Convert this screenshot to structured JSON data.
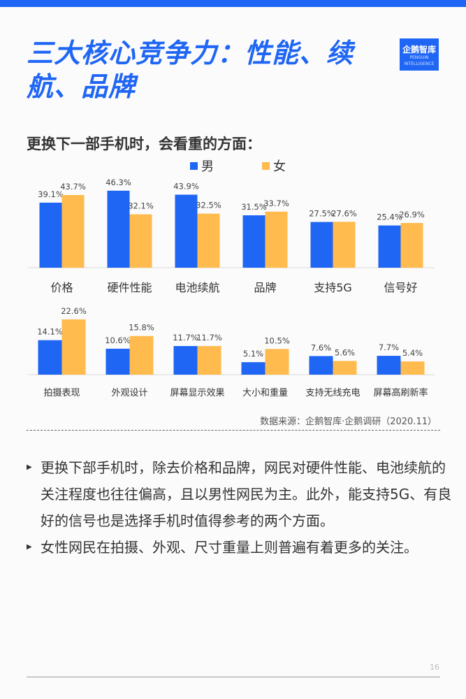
{
  "page": {
    "title": "三大核心竞争力：性能、续航、品牌",
    "logo_text": "企鹅智库",
    "logo_sub": "PENGUIN INTELLIGENCE",
    "chart_title": "更换下一部手机时，会看重的方面：",
    "source": "数据来源：企鹅智库·企鹅调研（2020.11）",
    "bullets": [
      "更换下部手机时，除去价格和品牌，网民对硬件性能、电池续航的关注程度也往往偏高，且以男性网民为主。此外，能支持5G、有良好的信号也是选择手机时值得参考的两个方面。",
      "女性网民在拍摄、外观、尺寸重量上则普遍有着更多的关注。"
    ],
    "page_number": "16"
  },
  "colors": {
    "male": "#1f66f5",
    "female": "#ffbb4d",
    "accent": "#1f66f5"
  },
  "chart_data": [
    {
      "type": "bar",
      "title": "更换下一部手机时，会看重的方面：",
      "categories": [
        "价格",
        "硬件性能",
        "电池续航",
        "品牌",
        "支持5G",
        "信号好"
      ],
      "series": [
        {
          "name": "男",
          "values": [
            39.1,
            46.3,
            43.9,
            31.5,
            27.5,
            25.4
          ]
        },
        {
          "name": "女",
          "values": [
            43.7,
            32.1,
            32.5,
            33.7,
            27.6,
            26.9
          ]
        }
      ],
      "unit": "%",
      "legend": "top-center"
    },
    {
      "type": "bar",
      "categories": [
        "拍摄表现",
        "外观设计",
        "屏幕显示效果",
        "大小和重量",
        "支持无线充电",
        "屏幕高刷新率"
      ],
      "series": [
        {
          "name": "男",
          "values": [
            14.1,
            10.6,
            11.7,
            5.1,
            7.6,
            7.7
          ]
        },
        {
          "name": "女",
          "values": [
            22.6,
            15.8,
            11.7,
            10.5,
            5.6,
            5.4
          ]
        }
      ],
      "unit": "%"
    }
  ]
}
